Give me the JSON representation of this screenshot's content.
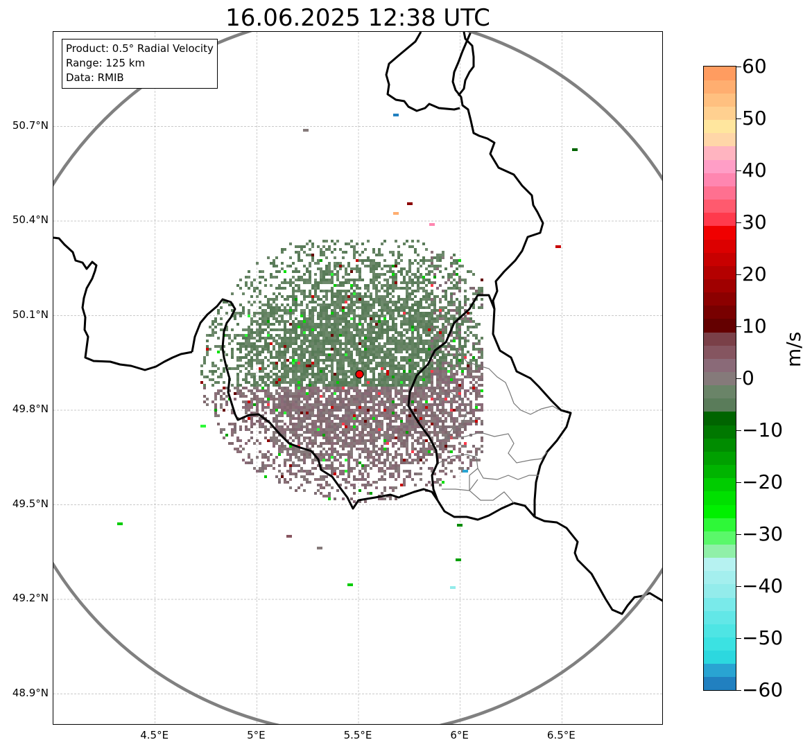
{
  "title": "16.06.2025 12:38 UTC",
  "info_box": {
    "product": "Product: 0.5° Radial Velocity",
    "range": "Range: 125 km",
    "data": "Data: RMIB"
  },
  "axes": {
    "lat_ticks": [
      "50.7°N",
      "50.4°N",
      "50.1°N",
      "49.8°N",
      "49.5°N",
      "49.2°N",
      "48.9°N"
    ],
    "lon_ticks": [
      "4.5°E",
      "5°E",
      "5.5°E",
      "6°E",
      "6.5°E"
    ],
    "lon_range": [
      4.0,
      7.0
    ],
    "lat_range": [
      48.8,
      51.0
    ],
    "grid": true
  },
  "radar": {
    "site": {
      "lon": 5.505,
      "lat": 49.914
    },
    "range_ring_color": "#808080",
    "site_marker_color": "#ff0000"
  },
  "colorbar": {
    "label": "m/s",
    "ticks": [
      "60",
      "50",
      "40",
      "30",
      "20",
      "10",
      "0",
      "−10",
      "−20",
      "−30",
      "−40",
      "−50",
      "−60"
    ],
    "min": -60,
    "max": 60,
    "colors": [
      "#2180c0",
      "#29a4d2",
      "#2cd8df",
      "#3be2e2",
      "#4ee5e4",
      "#62e7e7",
      "#79eaea",
      "#93eceb",
      "#a4efee",
      "#b6f2f1",
      "#90f0a8",
      "#5af86a",
      "#2ef838",
      "#00f000",
      "#00e000",
      "#00cc00",
      "#00b400",
      "#00a000",
      "#008c00",
      "#007800",
      "#006400",
      "#5a7c5a",
      "#6a8468",
      "#857a7a",
      "#8a6a78",
      "#855560",
      "#7a4048",
      "#640000",
      "#780000",
      "#8c0000",
      "#a00000",
      "#b40000",
      "#c80000",
      "#dc0000",
      "#f00000",
      "#ff3a4c",
      "#ff5a6e",
      "#ff7090",
      "#ff86b0",
      "#ff9ec6",
      "#ffb4c0",
      "#ffd6a8",
      "#ffe69e",
      "#ffd090",
      "#ffc080",
      "#ffae70",
      "#ff9c60"
    ]
  }
}
